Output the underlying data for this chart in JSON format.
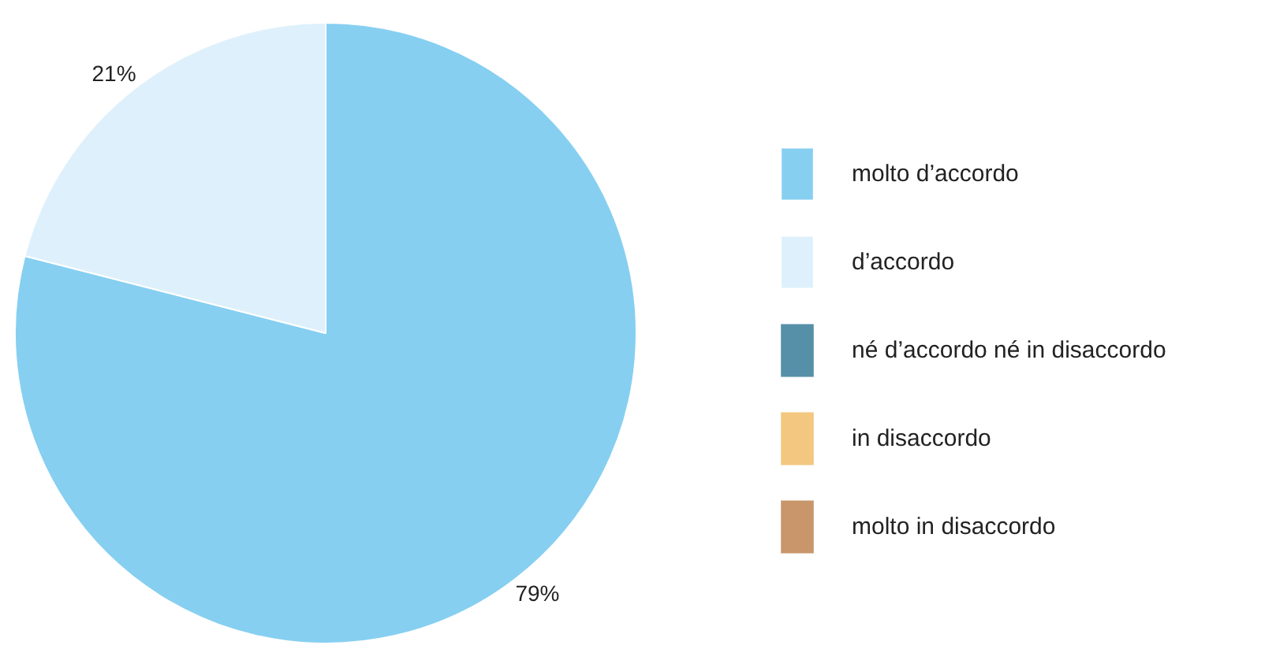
{
  "chart_data": {
    "type": "pie",
    "categories": [
      "molto d’accordo",
      "d’accordo",
      "né d’accordo né in disaccordo",
      "in disaccordo",
      "molto in disaccordo"
    ],
    "values": [
      79,
      21,
      0,
      0,
      0
    ],
    "colors": [
      "#86cff1",
      "#def0fb",
      "#5690a8",
      "#f3c77f",
      "#c9966b"
    ],
    "value_labels": [
      "79%",
      "21%",
      null,
      null,
      null
    ],
    "legend": "right"
  }
}
